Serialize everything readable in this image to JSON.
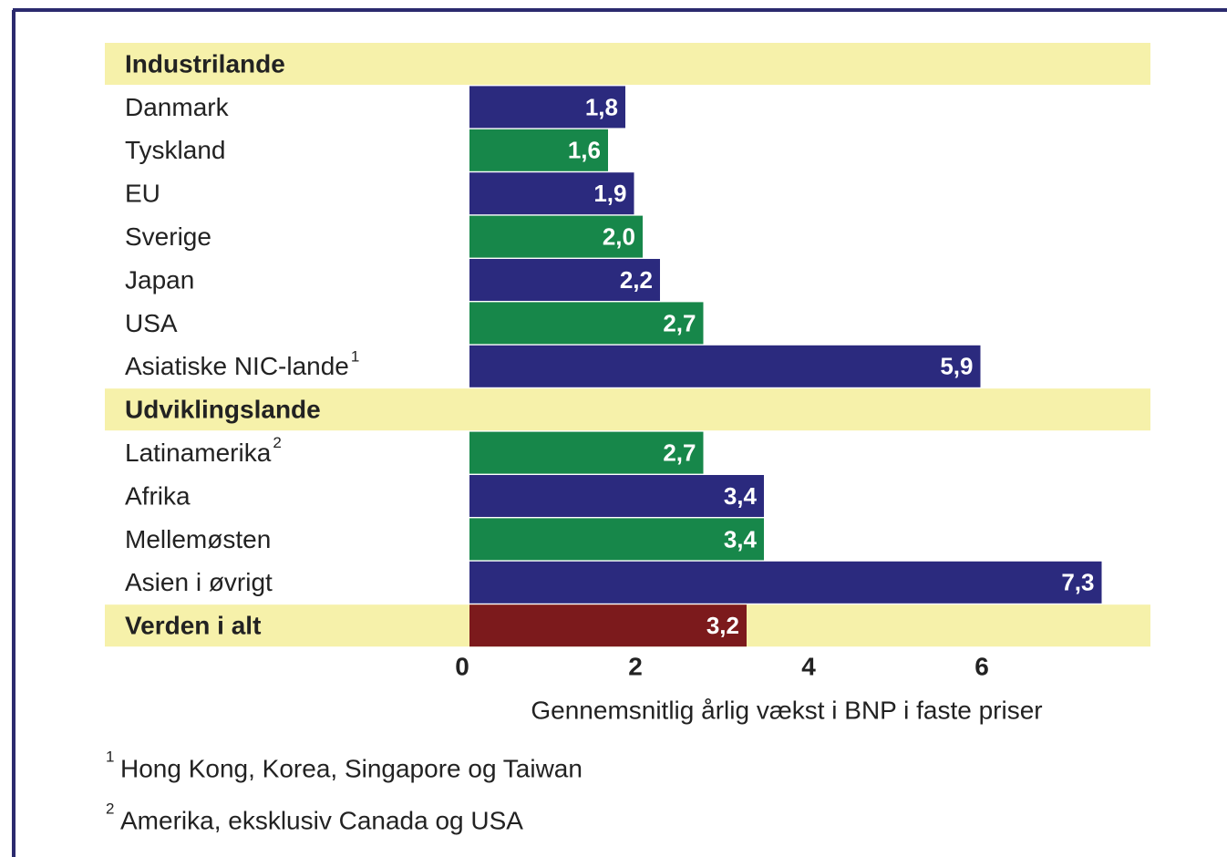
{
  "chart_data": {
    "type": "bar",
    "orientation": "horizontal",
    "groups": [
      {
        "name": "Industrilande",
        "categories": [
          "Danmark",
          "Tyskland",
          "EU",
          "Sverige",
          "Japan",
          "USA",
          "Asiatiske NIC-lande"
        ],
        "notes": [
          null,
          null,
          null,
          null,
          null,
          null,
          "1"
        ],
        "values": [
          1.8,
          1.6,
          1.9,
          2.0,
          2.2,
          2.7,
          5.9
        ],
        "value_labels": [
          "1,8",
          "1,6",
          "1,9",
          "2,0",
          "2,2",
          "2,7",
          "5,9"
        ],
        "colors": [
          "#2b2a7e",
          "#17874a",
          "#2b2a7e",
          "#17874a",
          "#2b2a7e",
          "#17874a",
          "#2b2a7e"
        ]
      },
      {
        "name": "Udviklingslande",
        "categories": [
          "Latinamerika",
          "Afrika",
          "Mellemøsten",
          "Asien i øvrigt"
        ],
        "notes": [
          "2",
          null,
          null,
          null
        ],
        "values": [
          2.7,
          3.4,
          3.4,
          7.3
        ],
        "value_labels": [
          "2,7",
          "3,4",
          "3,4",
          "7,3"
        ],
        "colors": [
          "#17874a",
          "#2b2a7e",
          "#17874a",
          "#2b2a7e"
        ]
      }
    ],
    "total": {
      "name": "Verden i alt",
      "value": 3.2,
      "value_label": "3,2",
      "color": "#7c1a1c"
    },
    "xlabel": "Gennemsnitlig årlig vækst i BNP i faste priser",
    "xlim": [
      0,
      8
    ],
    "xticks": [
      0,
      2,
      4,
      6
    ],
    "grid": false,
    "footnotes": [
      {
        "marker": "1",
        "text": "Hong Kong, Korea, Singapore og Taiwan"
      },
      {
        "marker": "2",
        "text": "Amerika, eksklusiv Canada og USA"
      }
    ]
  }
}
